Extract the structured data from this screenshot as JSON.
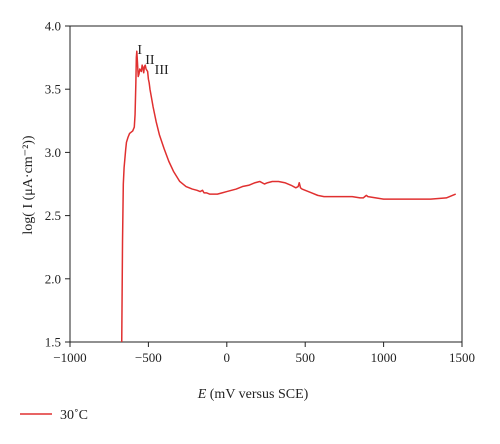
{
  "chart_data": {
    "type": "line",
    "xlabel_italic": "E",
    "xlabel_rest": " (mV versus SCE)",
    "ylabel": "log( I (μA·cm⁻²))",
    "xlim": [
      -1000,
      1500
    ],
    "ylim": [
      1.5,
      4.0
    ],
    "xticks": [
      -1000,
      -500,
      0,
      500,
      1000,
      1500
    ],
    "xtick_labels": [
      "−1000",
      "−500",
      "0",
      "500",
      "1000",
      "1500"
    ],
    "yticks": [
      1.5,
      2.0,
      2.5,
      3.0,
      3.5,
      4.0
    ],
    "ytick_labels": [
      "1.5",
      "2.0",
      "2.5",
      "3.0",
      "3.5",
      "4.0"
    ],
    "grid": false,
    "legend_position": "bottom-left",
    "annotations": [
      {
        "text": "I",
        "x": -570,
        "y": 3.78
      },
      {
        "text": "II",
        "x": -520,
        "y": 3.7
      },
      {
        "text": "III",
        "x": -460,
        "y": 3.62
      }
    ],
    "series": [
      {
        "name": "30˚C",
        "color": "#e03030",
        "x": [
          -670,
          -665,
          -660,
          -655,
          -650,
          -645,
          -640,
          -630,
          -620,
          -610,
          -600,
          -590,
          -585,
          -580,
          -577,
          -574,
          -570,
          -565,
          -560,
          -555,
          -550,
          -545,
          -540,
          -535,
          -530,
          -525,
          -520,
          -515,
          -510,
          -505,
          -500,
          -495,
          -490,
          -480,
          -470,
          -460,
          -450,
          -430,
          -400,
          -370,
          -340,
          -300,
          -260,
          -220,
          -190,
          -170,
          -155,
          -145,
          -130,
          -110,
          -90,
          -60,
          -30,
          0,
          30,
          60,
          100,
          140,
          180,
          210,
          240,
          260,
          290,
          330,
          370,
          410,
          440,
          455,
          462,
          470,
          480,
          500,
          540,
          580,
          620,
          660,
          700,
          750,
          800,
          850,
          870,
          880,
          890,
          900,
          950,
          1000,
          1100,
          1200,
          1300,
          1400,
          1460
        ],
        "y": [
          1.5,
          2.3,
          2.75,
          2.88,
          2.95,
          3.02,
          3.08,
          3.12,
          3.15,
          3.16,
          3.17,
          3.2,
          3.3,
          3.55,
          3.75,
          3.8,
          3.72,
          3.6,
          3.62,
          3.66,
          3.65,
          3.64,
          3.69,
          3.67,
          3.63,
          3.68,
          3.69,
          3.66,
          3.65,
          3.64,
          3.58,
          3.55,
          3.5,
          3.43,
          3.36,
          3.3,
          3.24,
          3.14,
          3.03,
          2.93,
          2.85,
          2.77,
          2.73,
          2.71,
          2.7,
          2.69,
          2.7,
          2.68,
          2.68,
          2.67,
          2.67,
          2.67,
          2.68,
          2.69,
          2.7,
          2.71,
          2.73,
          2.74,
          2.76,
          2.77,
          2.75,
          2.76,
          2.77,
          2.77,
          2.76,
          2.74,
          2.72,
          2.73,
          2.76,
          2.72,
          2.71,
          2.7,
          2.68,
          2.66,
          2.65,
          2.65,
          2.65,
          2.65,
          2.65,
          2.64,
          2.64,
          2.65,
          2.66,
          2.65,
          2.64,
          2.63,
          2.63,
          2.63,
          2.63,
          2.64,
          2.67
        ]
      }
    ]
  }
}
